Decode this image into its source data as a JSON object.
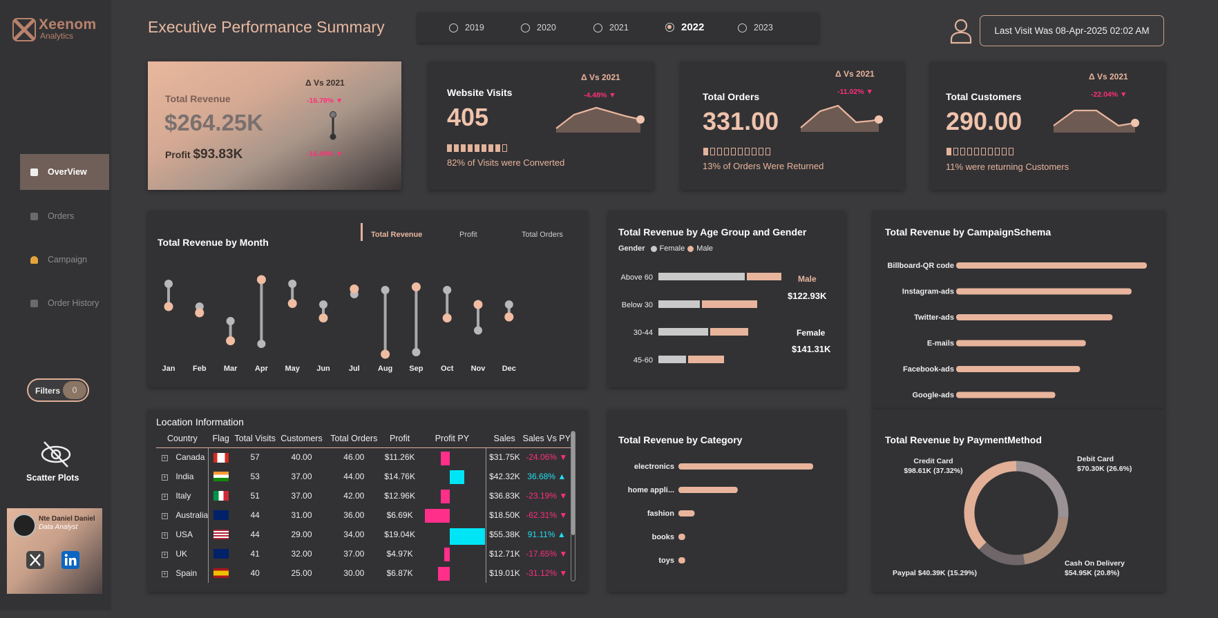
{
  "brand": {
    "name": "Xeenom",
    "sub": "Analytics"
  },
  "page_title": "Executive Performance Summary",
  "years": [
    {
      "label": "2019",
      "selected": false
    },
    {
      "label": "2020",
      "selected": false
    },
    {
      "label": "2021",
      "selected": false
    },
    {
      "label": "2022",
      "selected": true
    },
    {
      "label": "2023",
      "selected": false
    }
  ],
  "last_visit": "Last Visit Was 08-Apr-2025 02:02 AM",
  "nav": [
    {
      "label": "OverView",
      "active": true,
      "icon": "document-icon"
    },
    {
      "label": "Orders",
      "active": false,
      "icon": "orders-icon"
    },
    {
      "label": "Campaign",
      "active": false,
      "icon": "bell-icon"
    },
    {
      "label": "Order History",
      "active": false,
      "icon": "history-icon"
    }
  ],
  "filters": {
    "label": "Filters",
    "count": "0"
  },
  "scatter_label": "Scatter Plots",
  "profile": {
    "name": "Nte Daniel Daniel",
    "role": "Data Analyst"
  },
  "kpi": {
    "revenue": {
      "title": "Total Revenue",
      "value": "$264.25K",
      "profit_label": "Profit",
      "profit": "$93.83K",
      "delta_header": "Δ Vs 2021",
      "delta1": "-16.78%",
      "delta2": "-16.49%"
    },
    "visits": {
      "title": "Website Visits",
      "value": "405",
      "delta_header": "Δ Vs 2021",
      "delta": "-4.48%",
      "sub": "82% of Visits were Converted",
      "fill": 0.82
    },
    "orders": {
      "title": "Total Orders",
      "value": "331.00",
      "delta_header": "Δ Vs 2021",
      "delta": "-11.02%",
      "sub": "13% of Orders Were Returned",
      "fill": 0.13
    },
    "customers": {
      "title": "Total Customers",
      "value": "290.00",
      "delta_header": "Δ Vs 2021",
      "delta": "-22.04%",
      "sub": "11% were returning Customers",
      "fill": 0.11
    }
  },
  "month_chart": {
    "title": "Total Revenue by Month",
    "legend": [
      "Total Revenue",
      "Profit",
      "Total Orders"
    ],
    "months": [
      "Jan",
      "Feb",
      "Mar",
      "Apr",
      "May",
      "Jun",
      "Jul",
      "Aug",
      "Sep",
      "Oct",
      "Nov",
      "Dec"
    ],
    "gray": [
      68,
      46,
      32,
      10,
      68,
      48,
      58,
      62,
      2,
      62,
      23,
      48
    ],
    "peach": [
      46,
      40,
      13,
      72,
      49,
      35,
      63,
      0,
      65,
      35,
      48,
      36
    ]
  },
  "age_chart": {
    "title": "Total Revenue by Age Group and Gender",
    "legend_label": "Gender",
    "female": "Female",
    "male": "Male",
    "groups": [
      "Above 60",
      "Below 30",
      "30-44",
      "45-60"
    ],
    "female_vals": [
      125,
      60,
      72,
      40
    ],
    "male_vals": [
      50,
      80,
      55,
      52
    ],
    "male_label": "Male",
    "male_total": "$122.93K",
    "female_label": "Female",
    "female_total": "$141.31K"
  },
  "campaign_chart": {
    "title": "Total Revenue by CampaignSchema",
    "labels": [
      "Billboard-QR code",
      "Instagram-ads",
      "Twitter-ads",
      "E-mails",
      "Facebook-ads",
      "Google-ads"
    ],
    "values": [
      100,
      92,
      82,
      68,
      65,
      52
    ]
  },
  "category_chart": {
    "title": "Total Revenue by Category",
    "labels": [
      "electronics",
      "home appli...",
      "fashion",
      "books",
      "toys"
    ],
    "values": [
      100,
      44,
      12,
      5,
      5
    ]
  },
  "payment_chart": {
    "title": "Total Revenue by PaymentMethod",
    "slices": [
      {
        "name": "Credit Card",
        "label": "$98.61K (37.32%)",
        "pct": 37.32,
        "color": "#e1b097"
      },
      {
        "name": "Debit Card",
        "label": "$70.30K (26.6%)",
        "pct": 26.6,
        "color": "#9a9295"
      },
      {
        "name": "Cash On Delivery",
        "label": "$54.95K (20.8%)",
        "pct": 20.8,
        "color": "#a88c7c"
      },
      {
        "name": "Paypal",
        "label": "$40.39K (15.29%)",
        "pct": 15.29,
        "color": "#6e6668"
      }
    ]
  },
  "location": {
    "title": "Location Information",
    "headers": [
      "Country",
      "Flag",
      "Total Visits",
      "Customers",
      "Total Orders",
      "Profit",
      "Profit PY",
      "Sales",
      "Sales Vs PY"
    ],
    "rows": [
      {
        "country": "Canada",
        "flag": "canada",
        "visits": "57",
        "customers": "40.00",
        "orders": "46.00",
        "profit": "$11.26K",
        "py": -0.35,
        "sales": "$31.75K",
        "svpy": "-24.06%",
        "dir": "down"
      },
      {
        "country": "India",
        "flag": "india",
        "visits": "53",
        "customers": "37.00",
        "orders": "44.00",
        "profit": "$14.76K",
        "py": 0.55,
        "sales": "$42.32K",
        "svpy": "36.68%",
        "dir": "up"
      },
      {
        "country": "Italy",
        "flag": "italy",
        "visits": "51",
        "customers": "37.00",
        "orders": "42.00",
        "profit": "$12.96K",
        "py": -0.33,
        "sales": "$36.83K",
        "svpy": "-23.19%",
        "dir": "down"
      },
      {
        "country": "Australia",
        "flag": "australia",
        "visits": "44",
        "customers": "31.00",
        "orders": "36.00",
        "profit": "$6.69K",
        "py": -0.95,
        "sales": "$18.50K",
        "svpy": "-62.31%",
        "dir": "down"
      },
      {
        "country": "USA",
        "flag": "usa",
        "visits": "44",
        "customers": "29.00",
        "orders": "34.00",
        "profit": "$19.04K",
        "py": 1.35,
        "sales": "$55.38K",
        "svpy": "91.11%",
        "dir": "up"
      },
      {
        "country": "UK",
        "flag": "uk",
        "visits": "41",
        "customers": "32.00",
        "orders": "37.00",
        "profit": "$4.97K",
        "py": -0.22,
        "sales": "$12.71K",
        "svpy": "-17.65%",
        "dir": "down"
      },
      {
        "country": "Spain",
        "flag": "spain",
        "visits": "40",
        "customers": "25.00",
        "orders": "30.00",
        "profit": "$6.87K",
        "py": -0.45,
        "sales": "$19.01K",
        "svpy": "-31.12%",
        "dir": "down"
      }
    ]
  }
}
